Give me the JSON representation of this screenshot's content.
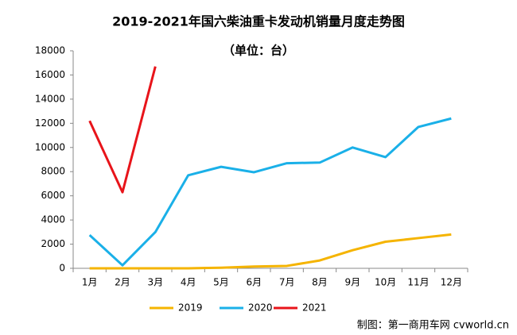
{
  "chart_data": {
    "type": "line",
    "title": "2019-2021年国六柴油重卡发动机销量月度走势图",
    "subtitle": "（单位：台）",
    "source": "制图：第一商用车网 cvworld.cn",
    "categories": [
      "1月",
      "2月",
      "3月",
      "4月",
      "5月",
      "6月",
      "7月",
      "8月",
      "9月",
      "10月",
      "11月",
      "12月"
    ],
    "series": [
      {
        "name": "2019",
        "color": "#f5b400",
        "values": [
          0,
          0,
          0,
          0,
          50,
          150,
          200,
          650,
          1500,
          2200,
          2500,
          2800
        ]
      },
      {
        "name": "2020",
        "color": "#1ab0e8",
        "values": [
          2750,
          250,
          3000,
          7700,
          8400,
          7950,
          8700,
          8750,
          10000,
          9200,
          11700,
          12400
        ]
      },
      {
        "name": "2021",
        "color": "#e8141a",
        "values": [
          12200,
          6300,
          16700,
          null,
          null,
          null,
          null,
          null,
          null,
          null,
          null,
          null
        ]
      }
    ],
    "ylim": [
      0,
      18000
    ],
    "yticks": [
      0,
      2000,
      4000,
      6000,
      8000,
      10000,
      12000,
      14000,
      16000,
      18000
    ],
    "grid": false,
    "legend": "bottom"
  }
}
